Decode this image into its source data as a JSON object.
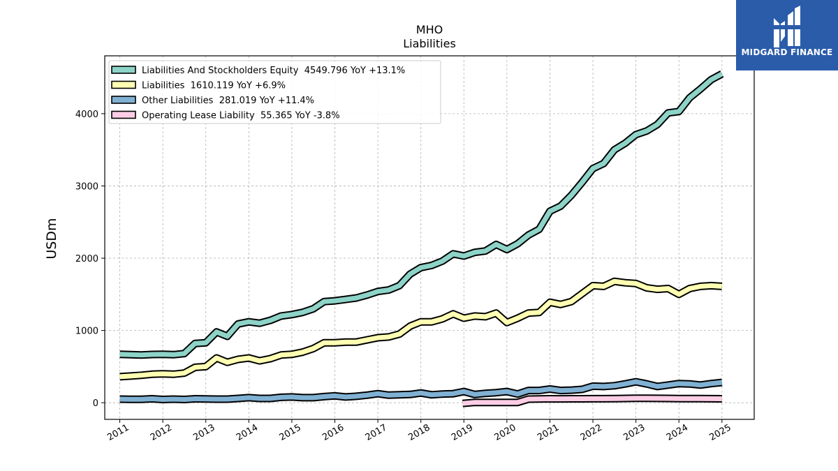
{
  "logo": {
    "text": "MIDGARD FINANCE",
    "icon": "midgard-logo-icon",
    "bg_color": "#2a5caa"
  },
  "chart_data": {
    "type": "line",
    "title": "MHO",
    "subtitle": "Liabilities",
    "ylabel": "USDm",
    "xlabel": "",
    "xlim": [
      2010.65,
      2025.75
    ],
    "ylim": [
      -230,
      4800
    ],
    "yticks": [
      0,
      1000,
      2000,
      3000,
      4000
    ],
    "xticks": [
      "2011",
      "2012",
      "2013",
      "2014",
      "2015",
      "2016",
      "2017",
      "2018",
      "2019",
      "2020",
      "2021",
      "2022",
      "2023",
      "2024",
      "2025"
    ],
    "grid": true,
    "legend_position": "top-left",
    "series": [
      {
        "name": "Liabilities And Stockholders Equity",
        "legend": "Liabilities And Stockholders Equity  4549.796 YoY +13.1%",
        "color": "#8dd3c7",
        "points": [
          [
            2011.0,
            670
          ],
          [
            2011.25,
            665
          ],
          [
            2011.5,
            660
          ],
          [
            2011.75,
            668
          ],
          [
            2012.0,
            670
          ],
          [
            2012.25,
            665
          ],
          [
            2012.5,
            680
          ],
          [
            2012.75,
            820
          ],
          [
            2013.0,
            830
          ],
          [
            2013.25,
            980
          ],
          [
            2013.5,
            920
          ],
          [
            2013.75,
            1090
          ],
          [
            2014.0,
            1120
          ],
          [
            2014.25,
            1100
          ],
          [
            2014.5,
            1140
          ],
          [
            2014.75,
            1200
          ],
          [
            2015.0,
            1220
          ],
          [
            2015.25,
            1250
          ],
          [
            2015.5,
            1300
          ],
          [
            2015.75,
            1400
          ],
          [
            2016.0,
            1410
          ],
          [
            2016.25,
            1430
          ],
          [
            2016.5,
            1450
          ],
          [
            2016.75,
            1490
          ],
          [
            2017.0,
            1540
          ],
          [
            2017.25,
            1560
          ],
          [
            2017.5,
            1620
          ],
          [
            2017.75,
            1780
          ],
          [
            2018.0,
            1870
          ],
          [
            2018.25,
            1900
          ],
          [
            2018.5,
            1960
          ],
          [
            2018.75,
            2060
          ],
          [
            2019.0,
            2030
          ],
          [
            2019.25,
            2080
          ],
          [
            2019.5,
            2100
          ],
          [
            2019.75,
            2190
          ],
          [
            2020.0,
            2120
          ],
          [
            2020.25,
            2200
          ],
          [
            2020.5,
            2320
          ],
          [
            2020.75,
            2400
          ],
          [
            2021.0,
            2650
          ],
          [
            2021.25,
            2720
          ],
          [
            2021.5,
            2870
          ],
          [
            2021.75,
            3050
          ],
          [
            2022.0,
            3240
          ],
          [
            2022.25,
            3310
          ],
          [
            2022.5,
            3500
          ],
          [
            2022.75,
            3590
          ],
          [
            2023.0,
            3710
          ],
          [
            2023.25,
            3760
          ],
          [
            2023.5,
            3850
          ],
          [
            2023.75,
            4010
          ],
          [
            2024.0,
            4030
          ],
          [
            2024.25,
            4220
          ],
          [
            2024.5,
            4340
          ],
          [
            2024.75,
            4470
          ],
          [
            2025.0,
            4550
          ]
        ]
      },
      {
        "name": "Liabilities",
        "legend": "Liabilities  1610.119 YoY +6.9%",
        "color": "#ffffb3",
        "points": [
          [
            2011.0,
            360
          ],
          [
            2011.25,
            370
          ],
          [
            2011.5,
            380
          ],
          [
            2011.75,
            395
          ],
          [
            2012.0,
            400
          ],
          [
            2012.25,
            395
          ],
          [
            2012.5,
            410
          ],
          [
            2012.75,
            490
          ],
          [
            2013.0,
            500
          ],
          [
            2013.25,
            620
          ],
          [
            2013.5,
            560
          ],
          [
            2013.75,
            600
          ],
          [
            2014.0,
            620
          ],
          [
            2014.25,
            580
          ],
          [
            2014.5,
            610
          ],
          [
            2014.75,
            660
          ],
          [
            2015.0,
            670
          ],
          [
            2015.25,
            700
          ],
          [
            2015.5,
            750
          ],
          [
            2015.75,
            830
          ],
          [
            2016.0,
            830
          ],
          [
            2016.25,
            840
          ],
          [
            2016.5,
            840
          ],
          [
            2016.75,
            870
          ],
          [
            2017.0,
            900
          ],
          [
            2017.25,
            910
          ],
          [
            2017.5,
            950
          ],
          [
            2017.75,
            1060
          ],
          [
            2018.0,
            1120
          ],
          [
            2018.25,
            1120
          ],
          [
            2018.5,
            1160
          ],
          [
            2018.75,
            1230
          ],
          [
            2019.0,
            1170
          ],
          [
            2019.25,
            1200
          ],
          [
            2019.5,
            1190
          ],
          [
            2019.75,
            1240
          ],
          [
            2020.0,
            1110
          ],
          [
            2020.25,
            1170
          ],
          [
            2020.5,
            1240
          ],
          [
            2020.75,
            1250
          ],
          [
            2021.0,
            1390
          ],
          [
            2021.25,
            1360
          ],
          [
            2021.5,
            1400
          ],
          [
            2021.75,
            1510
          ],
          [
            2022.0,
            1620
          ],
          [
            2022.25,
            1610
          ],
          [
            2022.5,
            1680
          ],
          [
            2022.75,
            1660
          ],
          [
            2023.0,
            1650
          ],
          [
            2023.25,
            1590
          ],
          [
            2023.5,
            1570
          ],
          [
            2023.75,
            1580
          ],
          [
            2024.0,
            1500
          ],
          [
            2024.25,
            1580
          ],
          [
            2024.5,
            1610
          ],
          [
            2024.75,
            1620
          ],
          [
            2025.0,
            1610
          ]
        ]
      },
      {
        "name": "Other Liabilities",
        "legend": "Other Liabilities  281.019 YoY +11.4%",
        "color": "#80b1d3",
        "points": [
          [
            2011.0,
            50
          ],
          [
            2011.25,
            48
          ],
          [
            2011.5,
            47
          ],
          [
            2011.75,
            55
          ],
          [
            2012.0,
            45
          ],
          [
            2012.25,
            50
          ],
          [
            2012.5,
            45
          ],
          [
            2012.75,
            55
          ],
          [
            2013.0,
            52
          ],
          [
            2013.25,
            50
          ],
          [
            2013.5,
            50
          ],
          [
            2013.75,
            60
          ],
          [
            2014.0,
            70
          ],
          [
            2014.25,
            60
          ],
          [
            2014.5,
            60
          ],
          [
            2014.75,
            75
          ],
          [
            2015.0,
            80
          ],
          [
            2015.25,
            70
          ],
          [
            2015.5,
            70
          ],
          [
            2015.75,
            85
          ],
          [
            2016.0,
            95
          ],
          [
            2016.25,
            80
          ],
          [
            2016.5,
            90
          ],
          [
            2016.75,
            105
          ],
          [
            2017.0,
            125
          ],
          [
            2017.25,
            105
          ],
          [
            2017.5,
            110
          ],
          [
            2017.75,
            115
          ],
          [
            2018.0,
            135
          ],
          [
            2018.25,
            110
          ],
          [
            2018.5,
            120
          ],
          [
            2018.75,
            125
          ],
          [
            2019.0,
            155
          ],
          [
            2019.25,
            115
          ],
          [
            2019.5,
            130
          ],
          [
            2019.75,
            140
          ],
          [
            2020.0,
            155
          ],
          [
            2020.25,
            120
          ],
          [
            2020.5,
            170
          ],
          [
            2020.75,
            170
          ],
          [
            2021.0,
            190
          ],
          [
            2021.25,
            170
          ],
          [
            2021.5,
            175
          ],
          [
            2021.75,
            185
          ],
          [
            2022.0,
            230
          ],
          [
            2022.25,
            225
          ],
          [
            2022.5,
            235
          ],
          [
            2022.75,
            260
          ],
          [
            2023.0,
            290
          ],
          [
            2023.25,
            260
          ],
          [
            2023.5,
            225
          ],
          [
            2023.75,
            245
          ],
          [
            2024.0,
            265
          ],
          [
            2024.25,
            260
          ],
          [
            2024.5,
            245
          ],
          [
            2024.75,
            265
          ],
          [
            2025.0,
            281
          ]
        ]
      },
      {
        "name": "Operating Lease Liability",
        "legend": "Operating Lease Liability  55.365 YoY -3.8%",
        "color": "#fccde5",
        "points": [
          [
            2018.97,
            -10
          ],
          [
            2019.25,
            5
          ],
          [
            2019.5,
            5
          ],
          [
            2019.75,
            5
          ],
          [
            2020.0,
            5
          ],
          [
            2020.25,
            5
          ],
          [
            2020.5,
            50
          ],
          [
            2020.75,
            52
          ],
          [
            2021.0,
            55
          ],
          [
            2021.25,
            54
          ],
          [
            2021.5,
            55
          ],
          [
            2021.75,
            55
          ],
          [
            2022.0,
            56
          ],
          [
            2022.25,
            56
          ],
          [
            2022.5,
            58
          ],
          [
            2022.75,
            60
          ],
          [
            2023.0,
            62
          ],
          [
            2023.25,
            62
          ],
          [
            2023.5,
            61
          ],
          [
            2023.75,
            60
          ],
          [
            2024.0,
            58
          ],
          [
            2024.25,
            58
          ],
          [
            2024.5,
            57
          ],
          [
            2024.75,
            56
          ],
          [
            2025.0,
            55
          ]
        ]
      }
    ]
  }
}
